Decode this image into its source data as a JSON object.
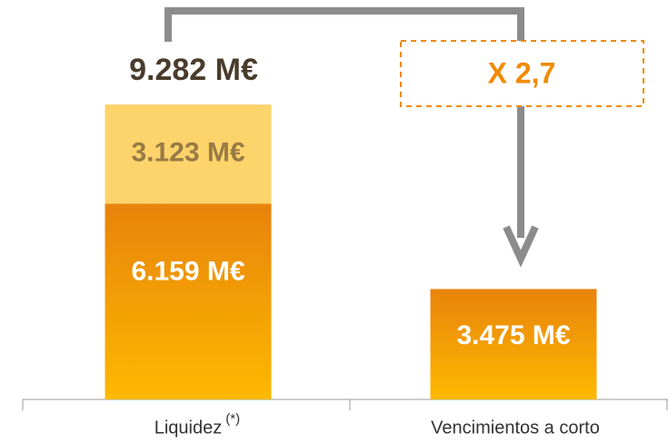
{
  "chart_data": {
    "type": "stacked_bar",
    "categories": [
      "Liquidez",
      "Vencimientos a corto"
    ],
    "category_notes": [
      "(*)",
      null
    ],
    "series": [
      {
        "color": "#fbb400",
        "values": [
          6159,
          3475
        ],
        "value_labels": [
          "6.159 M€",
          "3.475 M€"
        ],
        "label_color": "#ffffff"
      },
      {
        "color": "#fdd36b",
        "values": [
          3123,
          null
        ],
        "value_labels": [
          "3.123 M€",
          null
        ],
        "label_color": "#977a44"
      }
    ],
    "ylim": [
      0,
      10000
    ],
    "annotations": {
      "total": "9.282 M€",
      "ratio": "X 2,7"
    }
  }
}
